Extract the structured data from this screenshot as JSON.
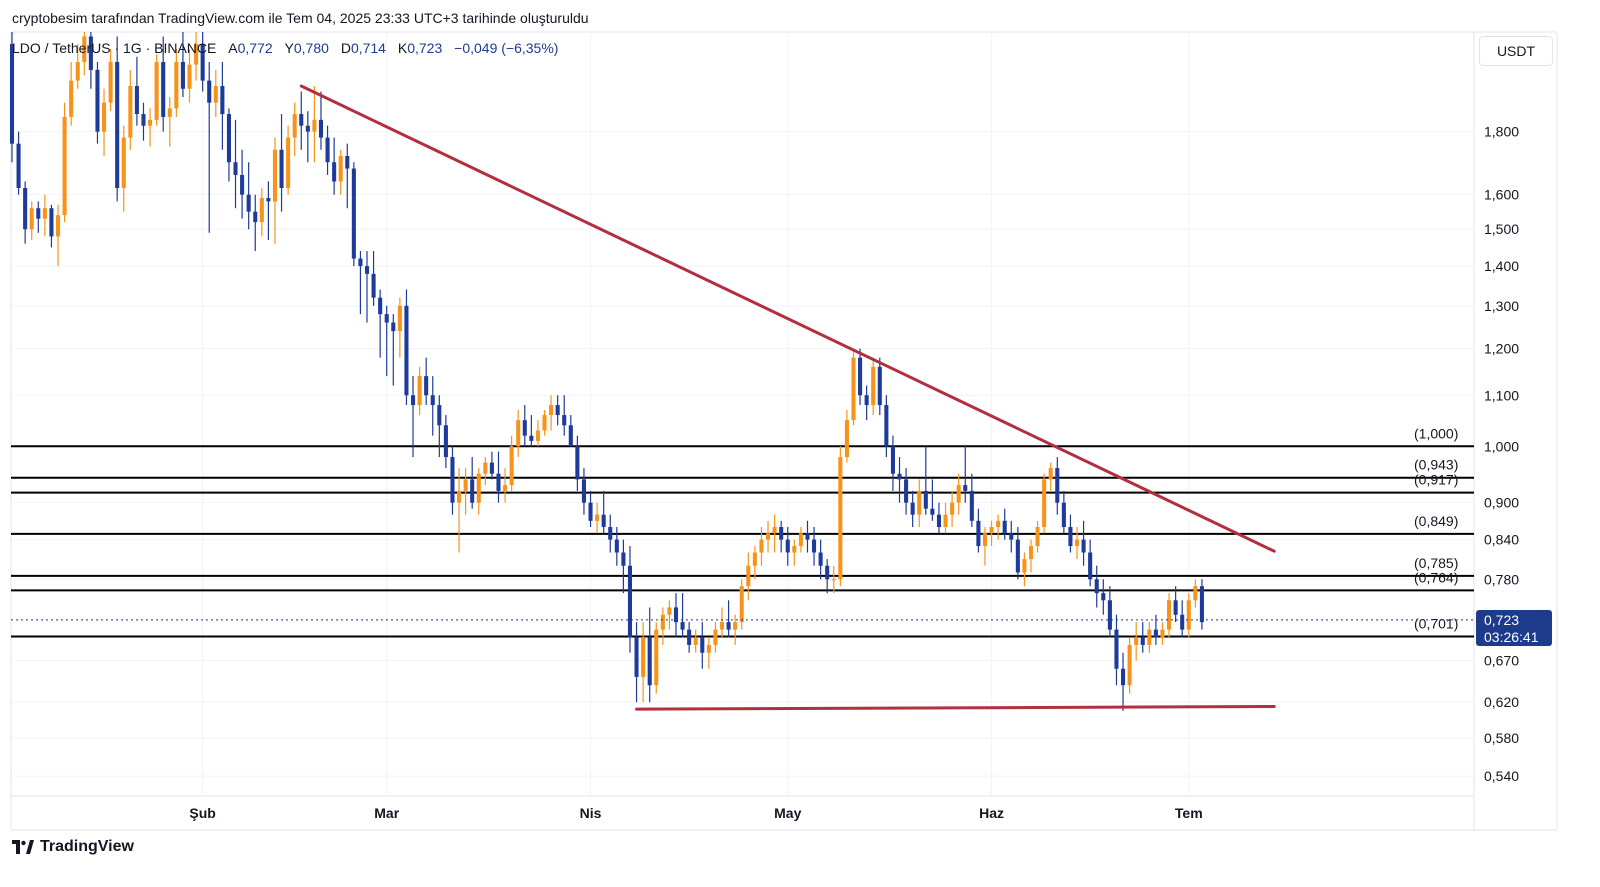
{
  "header": {
    "caption": "cryptobesim tarafından TradingView.com ile Tem 04, 2025 23:33 UTC+3 tarihinde oluşturuldu",
    "symbol": "LDO / TetherUS · 1G · BINANCE",
    "open_label": "A",
    "open": "0,772",
    "high_label": "Y",
    "high": "0,780",
    "low_label": "D",
    "low": "0,714",
    "close_label": "K",
    "close": "0,723",
    "change": "−0,049 (−6,35%)"
  },
  "currency": "USDT",
  "last_price": {
    "value": "0,723",
    "countdown": "03:26:41"
  },
  "brand": "TradingView",
  "colors": {
    "up": "#f7931a",
    "down": "#1e3a9a",
    "trend": "#b0303f",
    "fib": "#000000",
    "last": "#1e3a8a"
  },
  "chart_data": {
    "type": "candlestick",
    "y_scale": "log",
    "ylim": [
      0.505,
      2.05
    ],
    "y_ticks": [
      {
        "v": 1.8,
        "label": "1,800"
      },
      {
        "v": 1.6,
        "label": "1,600"
      },
      {
        "v": 1.5,
        "label": "1,500"
      },
      {
        "v": 1.4,
        "label": "1,400"
      },
      {
        "v": 1.3,
        "label": "1,300"
      },
      {
        "v": 1.2,
        "label": "1,200"
      },
      {
        "v": 1.1,
        "label": "1,100"
      },
      {
        "v": 1.0,
        "label": "1,000"
      },
      {
        "v": 0.9,
        "label": "0,900"
      },
      {
        "v": 0.84,
        "label": "0,840"
      },
      {
        "v": 0.78,
        "label": "0,780"
      },
      {
        "v": 0.67,
        "label": "0,670"
      },
      {
        "v": 0.62,
        "label": "0,620"
      },
      {
        "v": 0.58,
        "label": "0,580"
      },
      {
        "v": 0.54,
        "label": "0,540"
      }
    ],
    "x_ticks": [
      {
        "date": "2025-02-01",
        "label": "Şub"
      },
      {
        "date": "2025-03-01",
        "label": "Mar"
      },
      {
        "date": "2025-04-01",
        "label": "Nis"
      },
      {
        "date": "2025-05-01",
        "label": "May"
      },
      {
        "date": "2025-06-01",
        "label": "Haz"
      },
      {
        "date": "2025-07-01",
        "label": "Tem"
      }
    ],
    "x_range": [
      "2025-01-03",
      "2025-07-31"
    ],
    "fib_levels": [
      {
        "price": 1.0,
        "label": "(1,000)"
      },
      {
        "price": 0.943,
        "label": "(0,943)"
      },
      {
        "price": 0.917,
        "label": "(0,917)"
      },
      {
        "price": 0.849,
        "label": "(0,849)"
      },
      {
        "price": 0.785,
        "label": "(0,785)"
      },
      {
        "price": 0.764,
        "label": "(0,764)"
      },
      {
        "price": 0.701,
        "label": "(0,701)"
      }
    ],
    "trendlines": [
      {
        "from": {
          "date": "2025-02-16",
          "price": 1.96
        },
        "to": {
          "date": "2025-07-14",
          "price": 0.822
        }
      },
      {
        "from": {
          "date": "2025-04-08",
          "price": 0.612
        },
        "to": {
          "date": "2025-07-14",
          "price": 0.615
        }
      }
    ],
    "last_price": 0.723,
    "candles_start": "2025-01-03",
    "candles": [
      [
        2.12,
        2.2,
        1.7,
        1.76
      ],
      [
        1.76,
        1.8,
        1.6,
        1.62
      ],
      [
        1.62,
        1.64,
        1.46,
        1.5
      ],
      [
        1.5,
        1.58,
        1.47,
        1.56
      ],
      [
        1.56,
        1.58,
        1.49,
        1.53
      ],
      [
        1.53,
        1.6,
        1.48,
        1.56
      ],
      [
        1.56,
        1.57,
        1.45,
        1.48
      ],
      [
        1.48,
        1.57,
        1.4,
        1.54
      ],
      [
        1.54,
        1.9,
        1.52,
        1.85
      ],
      [
        1.85,
        2.05,
        1.82,
        1.98
      ],
      [
        1.98,
        2.12,
        1.95,
        2.05
      ],
      [
        2.05,
        2.2,
        2.0,
        2.15
      ],
      [
        2.15,
        2.2,
        1.95,
        2.02
      ],
      [
        2.02,
        2.05,
        1.76,
        1.8
      ],
      [
        1.8,
        1.95,
        1.72,
        1.9
      ],
      [
        1.9,
        2.1,
        1.87,
        2.05
      ],
      [
        2.05,
        2.15,
        1.58,
        1.62
      ],
      [
        1.62,
        1.82,
        1.55,
        1.78
      ],
      [
        1.78,
        2.02,
        1.74,
        1.96
      ],
      [
        1.96,
        2.07,
        1.82,
        1.86
      ],
      [
        1.86,
        1.9,
        1.77,
        1.82
      ],
      [
        1.82,
        1.88,
        1.75,
        1.84
      ],
      [
        1.84,
        2.08,
        1.82,
        2.05
      ],
      [
        2.05,
        2.15,
        1.8,
        1.85
      ],
      [
        1.85,
        1.92,
        1.75,
        1.88
      ],
      [
        1.88,
        2.1,
        1.85,
        2.05
      ],
      [
        2.05,
        2.2,
        1.92,
        1.95
      ],
      [
        1.95,
        2.1,
        1.9,
        2.04
      ],
      [
        2.04,
        2.18,
        1.98,
        2.12
      ],
      [
        2.12,
        2.2,
        1.94,
        1.98
      ],
      [
        1.98,
        2.05,
        1.49,
        1.9
      ],
      [
        1.9,
        2.02,
        1.85,
        1.96
      ],
      [
        1.96,
        2.05,
        1.74,
        1.86
      ],
      [
        1.86,
        1.88,
        1.64,
        1.7
      ],
      [
        1.7,
        1.84,
        1.56,
        1.66
      ],
      [
        1.66,
        1.74,
        1.53,
        1.6
      ],
      [
        1.6,
        1.7,
        1.5,
        1.55
      ],
      [
        1.55,
        1.6,
        1.44,
        1.52
      ],
      [
        1.52,
        1.62,
        1.48,
        1.59
      ],
      [
        1.59,
        1.64,
        1.47,
        1.58
      ],
      [
        1.58,
        1.78,
        1.46,
        1.74
      ],
      [
        1.74,
        1.86,
        1.55,
        1.62
      ],
      [
        1.62,
        1.82,
        1.6,
        1.78
      ],
      [
        1.78,
        1.9,
        1.72,
        1.86
      ],
      [
        1.86,
        1.94,
        1.74,
        1.82
      ],
      [
        1.82,
        1.87,
        1.7,
        1.8
      ],
      [
        1.8,
        1.96,
        1.7,
        1.84
      ],
      [
        1.84,
        1.94,
        1.74,
        1.78
      ],
      [
        1.78,
        1.82,
        1.66,
        1.7
      ],
      [
        1.7,
        1.78,
        1.6,
        1.64
      ],
      [
        1.64,
        1.74,
        1.6,
        1.72
      ],
      [
        1.72,
        1.76,
        1.56,
        1.68
      ],
      [
        1.68,
        1.7,
        1.4,
        1.42
      ],
      [
        1.42,
        1.44,
        1.28,
        1.4
      ],
      [
        1.4,
        1.44,
        1.26,
        1.38
      ],
      [
        1.38,
        1.44,
        1.3,
        1.32
      ],
      [
        1.32,
        1.34,
        1.18,
        1.28
      ],
      [
        1.28,
        1.3,
        1.14,
        1.26
      ],
      [
        1.26,
        1.28,
        1.12,
        1.24
      ],
      [
        1.24,
        1.32,
        1.18,
        1.3
      ],
      [
        1.3,
        1.34,
        1.08,
        1.1
      ],
      [
        1.1,
        1.14,
        0.98,
        1.08
      ],
      [
        1.08,
        1.16,
        1.06,
        1.14
      ],
      [
        1.14,
        1.18,
        1.08,
        1.1
      ],
      [
        1.1,
        1.14,
        1.02,
        1.08
      ],
      [
        1.08,
        1.1,
        0.98,
        1.04
      ],
      [
        1.04,
        1.06,
        0.96,
        0.98
      ],
      [
        0.98,
        1.0,
        0.88,
        0.9
      ],
      [
        0.9,
        0.96,
        0.82,
        0.92
      ],
      [
        0.92,
        0.96,
        0.88,
        0.94
      ],
      [
        0.94,
        0.98,
        0.89,
        0.9
      ],
      [
        0.9,
        0.96,
        0.88,
        0.95
      ],
      [
        0.95,
        0.98,
        0.93,
        0.97
      ],
      [
        0.97,
        0.99,
        0.94,
        0.95
      ],
      [
        0.95,
        0.99,
        0.9,
        0.92
      ],
      [
        0.92,
        0.96,
        0.9,
        0.93
      ],
      [
        0.93,
        1.02,
        0.92,
        1.0
      ],
      [
        1.0,
        1.07,
        0.98,
        1.05
      ],
      [
        1.05,
        1.08,
        1.0,
        1.02
      ],
      [
        1.02,
        1.06,
        1.0,
        1.01
      ],
      [
        1.01,
        1.05,
        1.0,
        1.03
      ],
      [
        1.03,
        1.07,
        1.02,
        1.06
      ],
      [
        1.06,
        1.1,
        1.03,
        1.08
      ],
      [
        1.08,
        1.1,
        1.04,
        1.06
      ],
      [
        1.06,
        1.1,
        1.02,
        1.04
      ],
      [
        1.04,
        1.06,
        1.0,
        1.0
      ],
      [
        1.0,
        1.02,
        0.92,
        0.94
      ],
      [
        0.94,
        0.96,
        0.88,
        0.9
      ],
      [
        0.9,
        0.92,
        0.86,
        0.87
      ],
      [
        0.87,
        0.9,
        0.85,
        0.88
      ],
      [
        0.88,
        0.92,
        0.85,
        0.86
      ],
      [
        0.86,
        0.88,
        0.82,
        0.84
      ],
      [
        0.84,
        0.86,
        0.8,
        0.82
      ],
      [
        0.82,
        0.84,
        0.76,
        0.8
      ],
      [
        0.8,
        0.83,
        0.68,
        0.7
      ],
      [
        0.7,
        0.72,
        0.62,
        0.65
      ],
      [
        0.65,
        0.72,
        0.62,
        0.7
      ],
      [
        0.7,
        0.74,
        0.62,
        0.64
      ],
      [
        0.64,
        0.72,
        0.63,
        0.71
      ],
      [
        0.71,
        0.74,
        0.69,
        0.73
      ],
      [
        0.73,
        0.75,
        0.71,
        0.74
      ],
      [
        0.74,
        0.76,
        0.7,
        0.72
      ],
      [
        0.72,
        0.76,
        0.7,
        0.71
      ],
      [
        0.71,
        0.72,
        0.68,
        0.69
      ],
      [
        0.69,
        0.71,
        0.68,
        0.7
      ],
      [
        0.7,
        0.72,
        0.66,
        0.68
      ],
      [
        0.68,
        0.7,
        0.66,
        0.69
      ],
      [
        0.69,
        0.72,
        0.68,
        0.71
      ],
      [
        0.71,
        0.74,
        0.7,
        0.72
      ],
      [
        0.72,
        0.75,
        0.7,
        0.71
      ],
      [
        0.71,
        0.73,
        0.69,
        0.72
      ],
      [
        0.72,
        0.78,
        0.71,
        0.77
      ],
      [
        0.77,
        0.82,
        0.75,
        0.8
      ],
      [
        0.8,
        0.83,
        0.78,
        0.82
      ],
      [
        0.82,
        0.86,
        0.8,
        0.84
      ],
      [
        0.84,
        0.87,
        0.82,
        0.85
      ],
      [
        0.85,
        0.88,
        0.82,
        0.86
      ],
      [
        0.86,
        0.87,
        0.82,
        0.84
      ],
      [
        0.84,
        0.86,
        0.8,
        0.82
      ],
      [
        0.82,
        0.84,
        0.8,
        0.83
      ],
      [
        0.83,
        0.86,
        0.82,
        0.85
      ],
      [
        0.85,
        0.87,
        0.82,
        0.84
      ],
      [
        0.84,
        0.86,
        0.8,
        0.82
      ],
      [
        0.82,
        0.84,
        0.78,
        0.8
      ],
      [
        0.8,
        0.81,
        0.76,
        0.78
      ],
      [
        0.78,
        0.8,
        0.76,
        0.78
      ],
      [
        0.78,
        1.0,
        0.77,
        0.98
      ],
      [
        0.98,
        1.07,
        0.97,
        1.05
      ],
      [
        1.05,
        1.2,
        1.04,
        1.18
      ],
      [
        1.18,
        1.2,
        1.08,
        1.1
      ],
      [
        1.1,
        1.12,
        1.05,
        1.08
      ],
      [
        1.08,
        1.18,
        1.06,
        1.16
      ],
      [
        1.16,
        1.18,
        1.06,
        1.08
      ],
      [
        1.08,
        1.1,
        0.98,
        1.0
      ],
      [
        1.0,
        1.02,
        0.92,
        0.95
      ],
      [
        0.95,
        0.98,
        0.9,
        0.94
      ],
      [
        0.94,
        0.96,
        0.88,
        0.9
      ],
      [
        0.9,
        0.92,
        0.86,
        0.88
      ],
      [
        0.88,
        0.94,
        0.86,
        0.92
      ],
      [
        0.92,
        1.0,
        0.88,
        0.89
      ],
      [
        0.89,
        0.94,
        0.87,
        0.88
      ],
      [
        0.88,
        0.9,
        0.85,
        0.86
      ],
      [
        0.86,
        0.9,
        0.85,
        0.88
      ],
      [
        0.88,
        0.92,
        0.86,
        0.9
      ],
      [
        0.9,
        0.95,
        0.88,
        0.93
      ],
      [
        0.93,
        1.0,
        0.9,
        0.92
      ],
      [
        0.92,
        0.95,
        0.86,
        0.87
      ],
      [
        0.87,
        0.89,
        0.82,
        0.83
      ],
      [
        0.83,
        0.86,
        0.8,
        0.85
      ],
      [
        0.85,
        0.87,
        0.83,
        0.86
      ],
      [
        0.86,
        0.88,
        0.84,
        0.87
      ],
      [
        0.87,
        0.89,
        0.84,
        0.85
      ],
      [
        0.85,
        0.87,
        0.82,
        0.84
      ],
      [
        0.84,
        0.86,
        0.78,
        0.79
      ],
      [
        0.79,
        0.82,
        0.77,
        0.81
      ],
      [
        0.81,
        0.84,
        0.79,
        0.83
      ],
      [
        0.83,
        0.87,
        0.82,
        0.86
      ],
      [
        0.86,
        0.95,
        0.85,
        0.94
      ],
      [
        0.94,
        0.97,
        0.92,
        0.96
      ],
      [
        0.96,
        0.98,
        0.88,
        0.9
      ],
      [
        0.9,
        0.92,
        0.85,
        0.86
      ],
      [
        0.86,
        0.88,
        0.82,
        0.83
      ],
      [
        0.83,
        0.86,
        0.81,
        0.84
      ],
      [
        0.84,
        0.87,
        0.8,
        0.82
      ],
      [
        0.82,
        0.84,
        0.77,
        0.78
      ],
      [
        0.78,
        0.8,
        0.74,
        0.76
      ],
      [
        0.76,
        0.78,
        0.73,
        0.75
      ],
      [
        0.75,
        0.77,
        0.7,
        0.71
      ],
      [
        0.71,
        0.73,
        0.64,
        0.66
      ],
      [
        0.66,
        0.68,
        0.61,
        0.64
      ],
      [
        0.64,
        0.7,
        0.63,
        0.69
      ],
      [
        0.69,
        0.72,
        0.67,
        0.7
      ],
      [
        0.7,
        0.72,
        0.68,
        0.69
      ],
      [
        0.69,
        0.72,
        0.68,
        0.71
      ],
      [
        0.71,
        0.73,
        0.69,
        0.7
      ],
      [
        0.7,
        0.72,
        0.69,
        0.71
      ],
      [
        0.71,
        0.76,
        0.7,
        0.75
      ],
      [
        0.75,
        0.77,
        0.72,
        0.73
      ],
      [
        0.73,
        0.75,
        0.7,
        0.71
      ],
      [
        0.71,
        0.76,
        0.7,
        0.75
      ],
      [
        0.75,
        0.78,
        0.74,
        0.77
      ],
      [
        0.77,
        0.78,
        0.71,
        0.72
      ]
    ]
  }
}
